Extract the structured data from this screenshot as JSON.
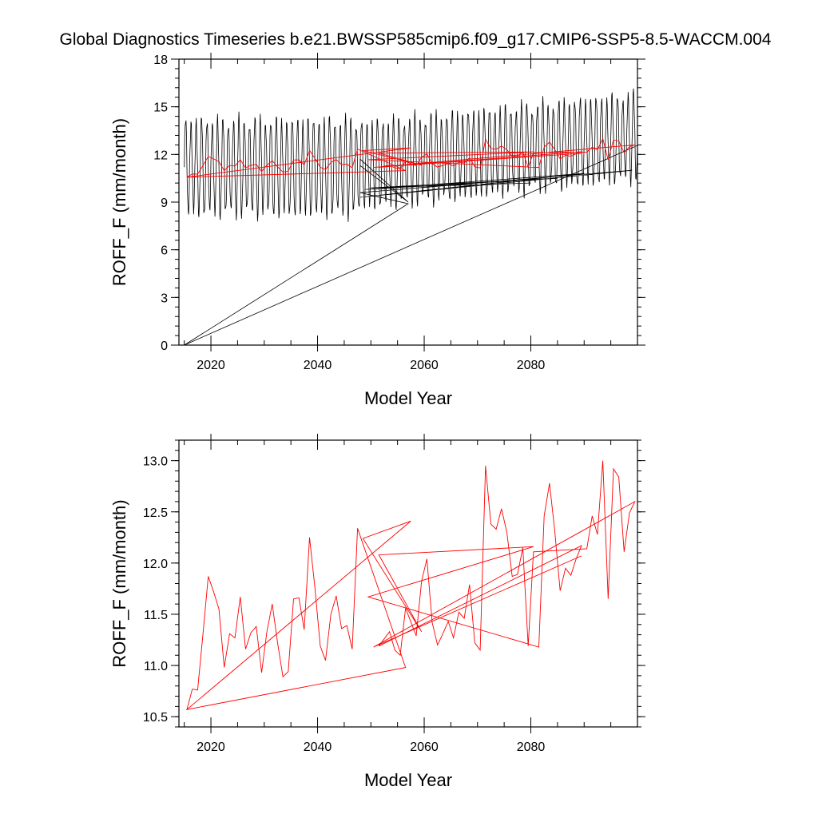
{
  "page": {
    "title": "Global Diagnostics Timeseries b.e21.BWSSP585cmip6.f09_g17.CMIP6-SSP5-8.5-WACCM.004"
  },
  "chart_data": [
    {
      "type": "line",
      "xlabel": "Model Year",
      "ylabel": "ROFF_F (mm/month)",
      "xlim": [
        2014,
        2100
      ],
      "ylim": [
        0,
        18
      ],
      "xticks": [
        2020,
        2040,
        2060,
        2080
      ],
      "yticks": [
        0,
        3,
        6,
        9,
        12,
        15,
        18
      ],
      "ytick_labels": [
        "0",
        "3",
        "6",
        "9",
        "12",
        "15",
        "18"
      ],
      "grid": false,
      "series": [
        {
          "kind": "monthly",
          "color": "#000000",
          "segments": [
            {
              "start": 2015.0,
              "end": 2048.0,
              "mean": 11.2,
              "amp": 2.9,
              "trend": 0.0
            },
            {
              "start": 2057.0,
              "end": 2048.0,
              "mean": 9.0,
              "amp": 0.0,
              "trend": 0.0,
              "note": "one-point return"
            },
            {
              "start": 2048.0,
              "end": 2100.0,
              "mean": 11.3,
              "amp": 2.6,
              "trend": 0.035
            }
          ],
          "overlay_points": [
            [
              2015.0,
              0.0
            ],
            [
              2057.0,
              8.9
            ],
            [
              2048.0,
              9.6
            ],
            [
              2099.0,
              11.0
            ],
            [
              2048.0,
              9.3
            ],
            [
              2090.0,
              10.8
            ],
            [
              2049.0,
              9.8
            ],
            [
              2085.0,
              10.5
            ],
            [
              2050.0,
              9.9
            ],
            [
              2080.0,
              10.2
            ]
          ]
        },
        {
          "kind": "annual",
          "color": "#ff0000",
          "points": [
            [
              2015.5,
              10.57
            ],
            [
              2016.5,
              10.77
            ],
            [
              2017.5,
              10.76
            ],
            [
              2018.5,
              11.3
            ],
            [
              2019.5,
              11.87
            ],
            [
              2020.5,
              11.72
            ],
            [
              2021.5,
              11.55
            ],
            [
              2022.5,
              10.98
            ],
            [
              2023.5,
              11.31
            ],
            [
              2024.5,
              11.27
            ],
            [
              2025.5,
              11.67
            ],
            [
              2026.5,
              11.16
            ],
            [
              2027.5,
              11.32
            ],
            [
              2028.5,
              11.38
            ],
            [
              2029.5,
              10.93
            ],
            [
              2030.5,
              11.33
            ],
            [
              2031.5,
              11.6
            ],
            [
              2032.5,
              11.22
            ],
            [
              2033.5,
              10.89
            ],
            [
              2034.5,
              10.94
            ],
            [
              2035.5,
              11.65
            ],
            [
              2036.5,
              11.66
            ],
            [
              2037.5,
              11.35
            ],
            [
              2038.5,
              12.25
            ],
            [
              2039.5,
              11.76
            ],
            [
              2040.5,
              11.19
            ],
            [
              2041.5,
              11.05
            ],
            [
              2042.5,
              11.5
            ],
            [
              2043.5,
              11.68
            ],
            [
              2044.5,
              11.36
            ],
            [
              2045.5,
              11.39
            ],
            [
              2046.5,
              11.16
            ],
            [
              2047.5,
              12.34
            ],
            [
              2056.5,
              10.98
            ],
            [
              2015.5,
              10.57
            ],
            [
              2057.5,
              12.41
            ],
            [
              2048.5,
              12.24
            ],
            [
              2059.5,
              11.33
            ],
            [
              2051.5,
              12.08
            ],
            [
              2080.5,
              12.16
            ],
            [
              2049.5,
              11.67
            ],
            [
              2081.5,
              11.18
            ],
            [
              2082.5,
              12.46
            ],
            [
              2083.5,
              12.78
            ],
            [
              2084.5,
              12.31
            ],
            [
              2085.5,
              11.73
            ],
            [
              2086.5,
              11.95
            ],
            [
              2087.5,
              11.88
            ],
            [
              2088.5,
              12.04
            ],
            [
              2089.5,
              12.17
            ],
            [
              2051.5,
              11.19
            ],
            [
              2053.5,
              11.33
            ],
            [
              2054.5,
              11.15
            ],
            [
              2055.5,
              11.1
            ],
            [
              2056.5,
              11.56
            ],
            [
              2058.5,
              11.29
            ],
            [
              2059.5,
              11.82
            ],
            [
              2060.5,
              12.04
            ],
            [
              2061.5,
              11.42
            ],
            [
              2062.5,
              11.2
            ],
            [
              2063.5,
              11.31
            ],
            [
              2064.5,
              11.43
            ],
            [
              2065.5,
              11.27
            ],
            [
              2066.5,
              11.52
            ],
            [
              2067.5,
              11.46
            ],
            [
              2068.5,
              11.79
            ],
            [
              2069.5,
              11.22
            ],
            [
              2070.5,
              11.15
            ],
            [
              2071.5,
              12.95
            ],
            [
              2072.5,
              12.38
            ],
            [
              2073.5,
              12.33
            ],
            [
              2074.5,
              12.53
            ],
            [
              2075.5,
              12.3
            ],
            [
              2076.5,
              11.87
            ],
            [
              2077.5,
              11.89
            ],
            [
              2078.5,
              12.15
            ],
            [
              2079.5,
              11.19
            ],
            [
              2080.5,
              12.11
            ],
            [
              2090.5,
              12.14
            ],
            [
              2091.5,
              12.46
            ],
            [
              2092.5,
              12.28
            ],
            [
              2093.5,
              13.0
            ],
            [
              2094.5,
              11.65
            ],
            [
              2095.5,
              12.92
            ],
            [
              2096.5,
              12.84
            ],
            [
              2097.5,
              12.11
            ],
            [
              2098.5,
              12.49
            ],
            [
              2099.5,
              12.6
            ],
            [
              2050.5,
              11.18
            ],
            [
              2089.5,
              12.07
            ]
          ]
        }
      ]
    },
    {
      "type": "line",
      "xlabel": "Model Year",
      "ylabel": "ROFF_F (mm/month)",
      "xlim": [
        2014,
        2100
      ],
      "ylim": [
        10.4,
        13.2
      ],
      "xticks": [
        2020,
        2040,
        2060,
        2080
      ],
      "yticks": [
        10.5,
        11.0,
        11.5,
        12.0,
        12.5,
        13.0
      ],
      "ytick_labels": [
        "10.5",
        "11.0",
        "11.5",
        "12.0",
        "12.5",
        "13.0"
      ],
      "grid": false,
      "series": [
        {
          "kind": "annual",
          "color": "#ff0000",
          "points_ref": "chart_data.0.series.1.points"
        }
      ]
    }
  ]
}
